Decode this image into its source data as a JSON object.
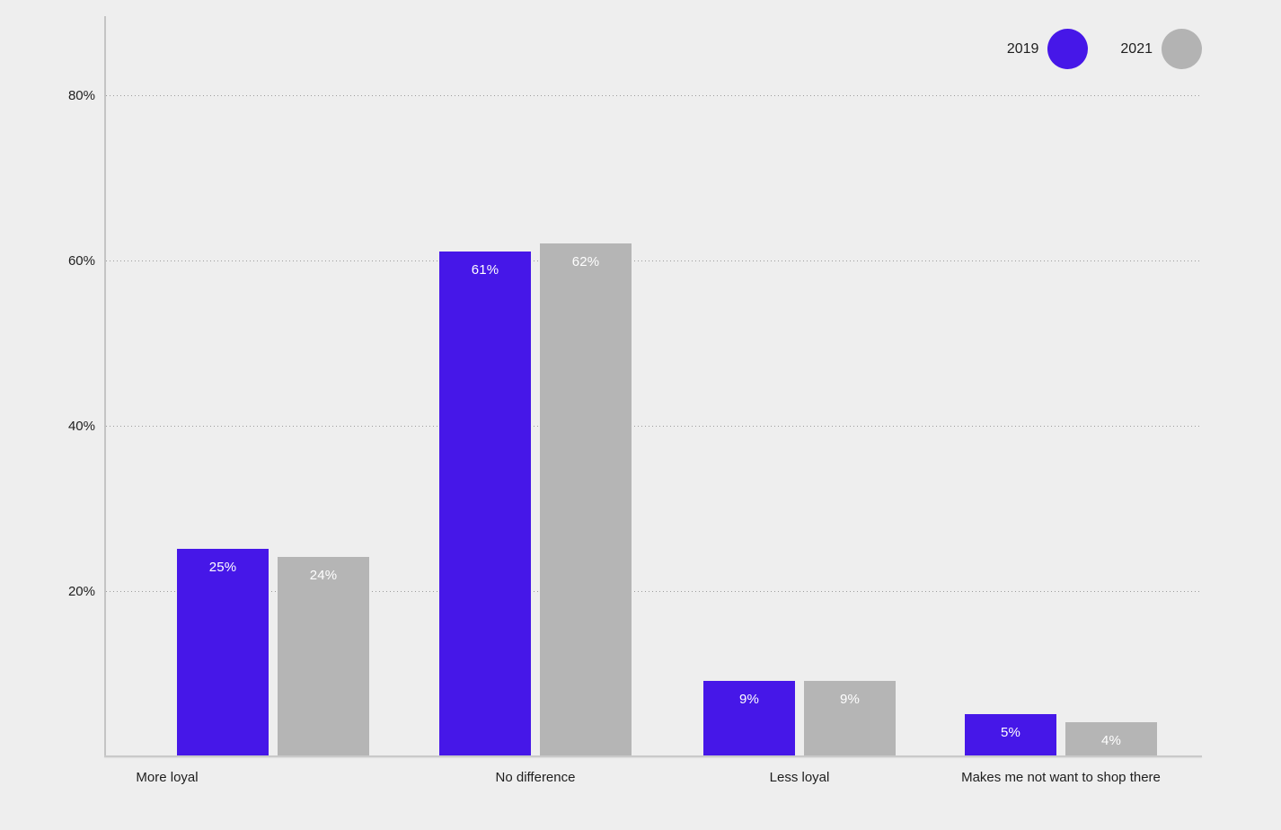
{
  "chart_data": {
    "type": "bar",
    "title": "",
    "categories": [
      "More loyal",
      "No difference",
      "Less loyal",
      "Makes me not want to shop there"
    ],
    "series": [
      {
        "name": "2019",
        "color": "#4617e8",
        "values": [
          25,
          61,
          9,
          5
        ],
        "labels": [
          "25%",
          "61%",
          "9%",
          "5%"
        ]
      },
      {
        "name": "2021",
        "color": "#b5b5b5",
        "values": [
          24,
          62,
          9,
          4
        ],
        "labels": [
          "24%",
          "62%",
          "9%",
          "4%"
        ]
      }
    ],
    "unit": "%",
    "yticks": [
      "20%",
      "40%",
      "60%",
      "80%"
    ],
    "ytick_values": [
      20,
      40,
      60,
      80
    ],
    "ylim": [
      0,
      89.5
    ],
    "grid": "horizontal-dotted",
    "legend_position": "top-right",
    "value_label_position": "inside-top",
    "value_label_color": "#ffffff"
  },
  "legend": {
    "items": [
      {
        "label": "2019",
        "color": "#4617e8"
      },
      {
        "label": "2021",
        "color": "#b3b3b3"
      }
    ]
  },
  "colors": {
    "background": "#eeeeee",
    "series_2019": "#4617e8",
    "series_2021": "#b5b5b5",
    "axis_line": "#c4c4c4",
    "gridline": "#9c9c9c",
    "text": "#1e1e1e",
    "bar_label": "#ffffff"
  }
}
